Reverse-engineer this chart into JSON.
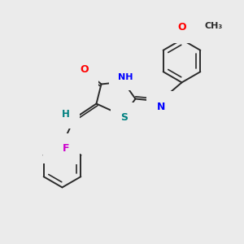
{
  "background_color": "#ebebeb",
  "bond_color": "#2a2a2a",
  "atom_colors": {
    "O": "#ff0000",
    "N": "#0000ff",
    "S": "#008080",
    "F": "#cc00cc",
    "Cl": "#88aa00",
    "H": "#008080",
    "C": "#2a2a2a"
  },
  "fig_width": 3.0,
  "fig_height": 3.0,
  "dpi": 100
}
